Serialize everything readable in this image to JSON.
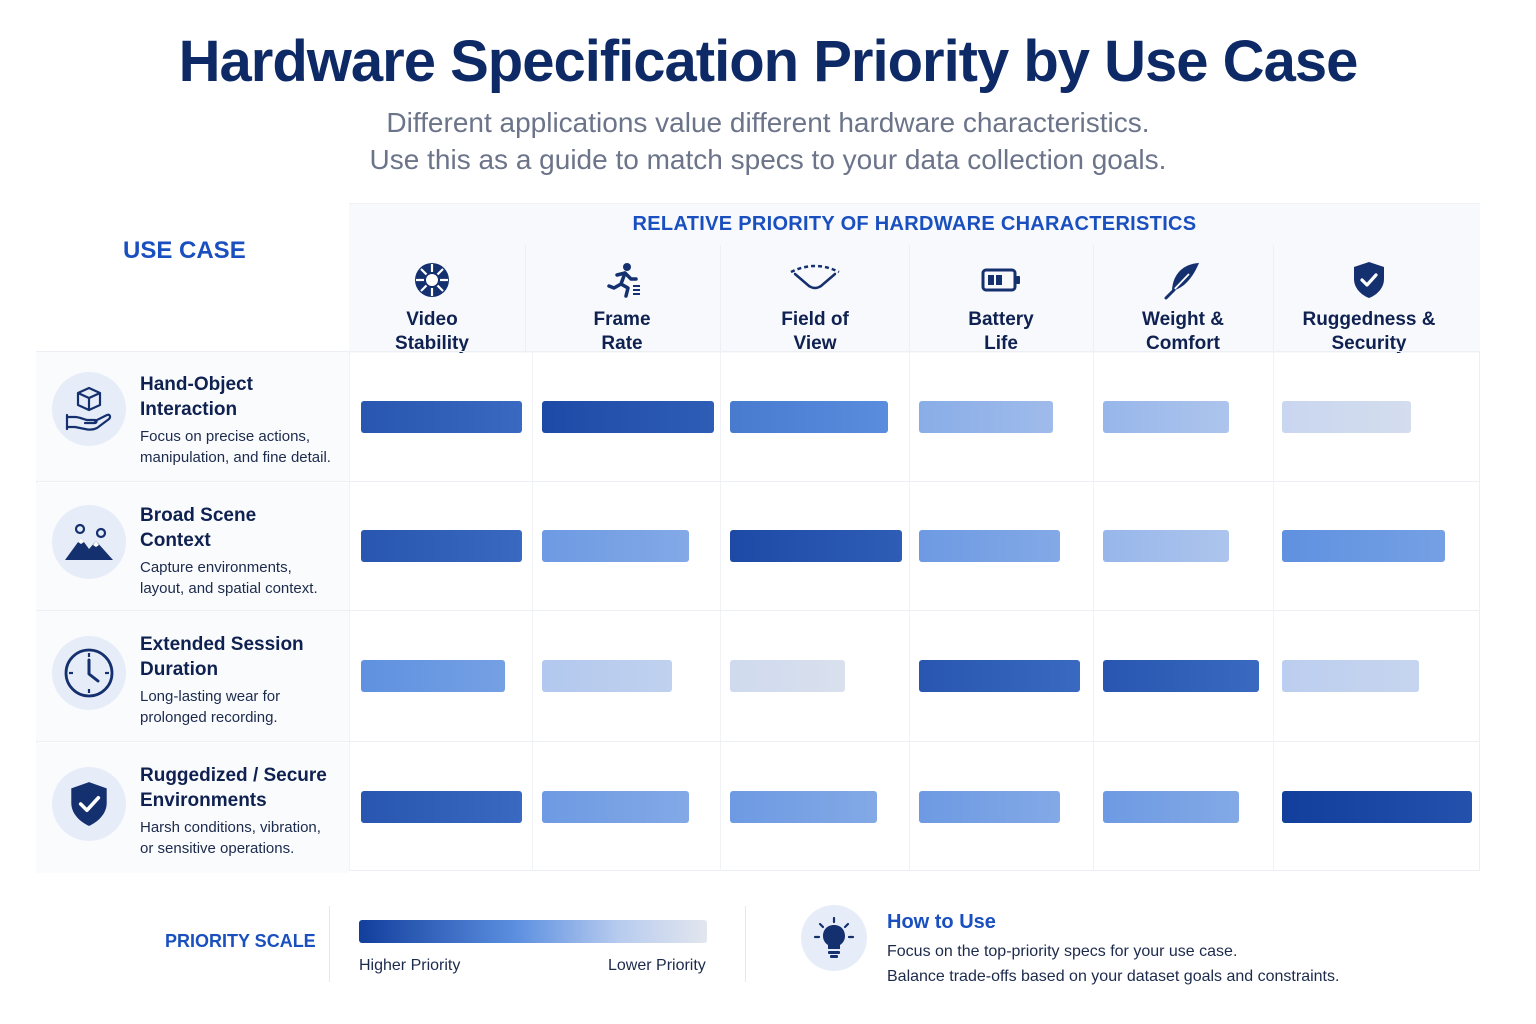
{
  "title": "Hardware Specification Priority by Use Case",
  "subtitle_line1": "Different applications value different hardware characteristics.",
  "subtitle_line2": "Use this as a guide to match specs to your data collection goals.",
  "use_case_header": "USE CASE",
  "priority_header": "RELATIVE PRIORITY OF HARDWARE CHARACTERISTICS",
  "columns": [
    {
      "line1": "Video",
      "line2": "Stability",
      "icon": "video-stability-icon"
    },
    {
      "line1": "Frame",
      "line2": "Rate",
      "icon": "running-figure-icon"
    },
    {
      "line1": "Field of",
      "line2": "View",
      "icon": "wide-angle-icon"
    },
    {
      "line1": "Battery",
      "line2": "Life",
      "icon": "battery-icon"
    },
    {
      "line1": "Weight &",
      "line2": "Comfort",
      "icon": "feather-icon"
    },
    {
      "line1": "Ruggedness &",
      "line2": "Security",
      "icon": "shield-check-icon"
    }
  ],
  "rows": [
    {
      "title_line1": "Hand-Object",
      "title_line2": "Interaction",
      "desc_line1": "Focus on precise actions,",
      "desc_line2": "manipulation, and fine detail.",
      "icon": "hand-box-icon"
    },
    {
      "title_line1": "Broad Scene",
      "title_line2": "Context",
      "desc_line1": "Capture environments,",
      "desc_line2": "layout, and spatial context.",
      "icon": "mountains-icon"
    },
    {
      "title_line1": "Extended Session",
      "title_line2": "Duration",
      "desc_line1": "Long-lasting wear for",
      "desc_line2": "prolonged recording.",
      "icon": "clock-icon"
    },
    {
      "title_line1": "Ruggedized / Secure",
      "title_line2": "Environments",
      "desc_line1": "Harsh conditions, vibration,",
      "desc_line2": "or sensitive operations.",
      "icon": "shield-check-icon"
    }
  ],
  "legend": {
    "label": "PRIORITY SCALE",
    "high": "Higher Priority",
    "low": "Lower Priority",
    "colors": [
      "#123e9c",
      "#5c8fe0",
      "#b8ccef",
      "#e2e6ee"
    ]
  },
  "how_to": {
    "title": "How to Use",
    "line1": "Focus on the top-priority specs for your use case.",
    "line2": "Balance trade-offs based on your dataset goals and constraints.",
    "icon": "lightbulb-icon"
  },
  "chart_data": {
    "type": "heatmap",
    "title": "Hardware Specification Priority by Use Case",
    "categories": [
      "Video Stability",
      "Frame Rate",
      "Field of View",
      "Battery Life",
      "Weight & Comfort",
      "Ruggedness & Security"
    ],
    "scale": [
      0,
      1
    ],
    "scale_note": "Higher values = higher priority",
    "series": [
      {
        "name": "Hand-Object Interaction",
        "values": [
          0.9,
          0.95,
          0.75,
          0.5,
          0.45,
          0.2
        ]
      },
      {
        "name": "Broad Scene Context",
        "values": [
          0.9,
          0.6,
          0.95,
          0.6,
          0.45,
          0.65
        ]
      },
      {
        "name": "Extended Session Duration",
        "values": [
          0.65,
          0.35,
          0.15,
          0.9,
          0.9,
          0.3
        ]
      },
      {
        "name": "Ruggedized / Secure Environments",
        "values": [
          0.9,
          0.6,
          0.6,
          0.6,
          0.6,
          1.0
        ]
      }
    ]
  }
}
